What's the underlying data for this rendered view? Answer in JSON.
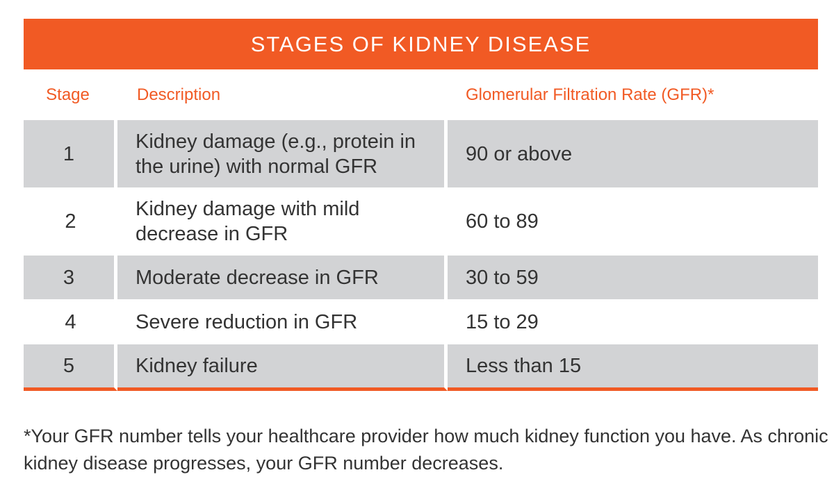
{
  "table": {
    "title": "STAGES OF KIDNEY DISEASE",
    "headers": {
      "stage": "Stage",
      "description": "Description",
      "gfr": "Glomerular Filtration Rate (GFR)*"
    },
    "rows": [
      {
        "stage": "1",
        "description": "Kidney damage (e.g., protein in the urine) with normal GFR",
        "gfr": "90 or above"
      },
      {
        "stage": "2",
        "description": "Kidney damage with mild decrease in GFR",
        "gfr": "60 to 89"
      },
      {
        "stage": "3",
        "description": "Moderate decrease in GFR",
        "gfr": "30 to 59"
      },
      {
        "stage": "4",
        "description": "Severe reduction in GFR",
        "gfr": "15 to 29"
      },
      {
        "stage": "5",
        "description": "Kidney failure",
        "gfr": "Less than 15"
      }
    ]
  },
  "footnote": "*Your GFR number tells your healthcare provider how much kidney function you have. As chronic kidney disease progresses, your GFR number decreases.",
  "colors": {
    "accent": "#f15a24",
    "row_shade": "#d2d3d5"
  }
}
